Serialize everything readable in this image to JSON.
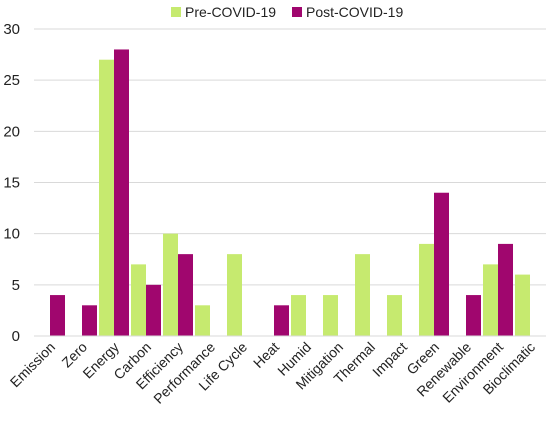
{
  "chart_data": {
    "type": "bar",
    "title": "",
    "xlabel": "",
    "ylabel": "",
    "categories": [
      "Emission",
      "Zero",
      "Energy",
      "Carbon",
      "Efficiency",
      "Performance",
      "Life Cycle",
      "Heat",
      "Humid",
      "Mitigation",
      "Thermal",
      "Impact",
      "Green",
      "Renewable",
      "Environment",
      "Bioclimatic"
    ],
    "series": [
      {
        "name": "Pre-COVID-19",
        "color": "#c6ea6f",
        "values": [
          0,
          0,
          27,
          7,
          10,
          3,
          8,
          0,
          4,
          4,
          8,
          4,
          9,
          0,
          7,
          6
        ]
      },
      {
        "name": "Post-COVID-19",
        "color": "#a0066e",
        "values": [
          4,
          3,
          28,
          5,
          8,
          0,
          0,
          3,
          0,
          0,
          0,
          0,
          14,
          4,
          9,
          0
        ]
      }
    ],
    "ylim": [
      0,
      30
    ],
    "yticks": [
      0,
      5,
      10,
      15,
      20,
      25,
      30
    ],
    "grid": true,
    "legend_position": "top"
  }
}
